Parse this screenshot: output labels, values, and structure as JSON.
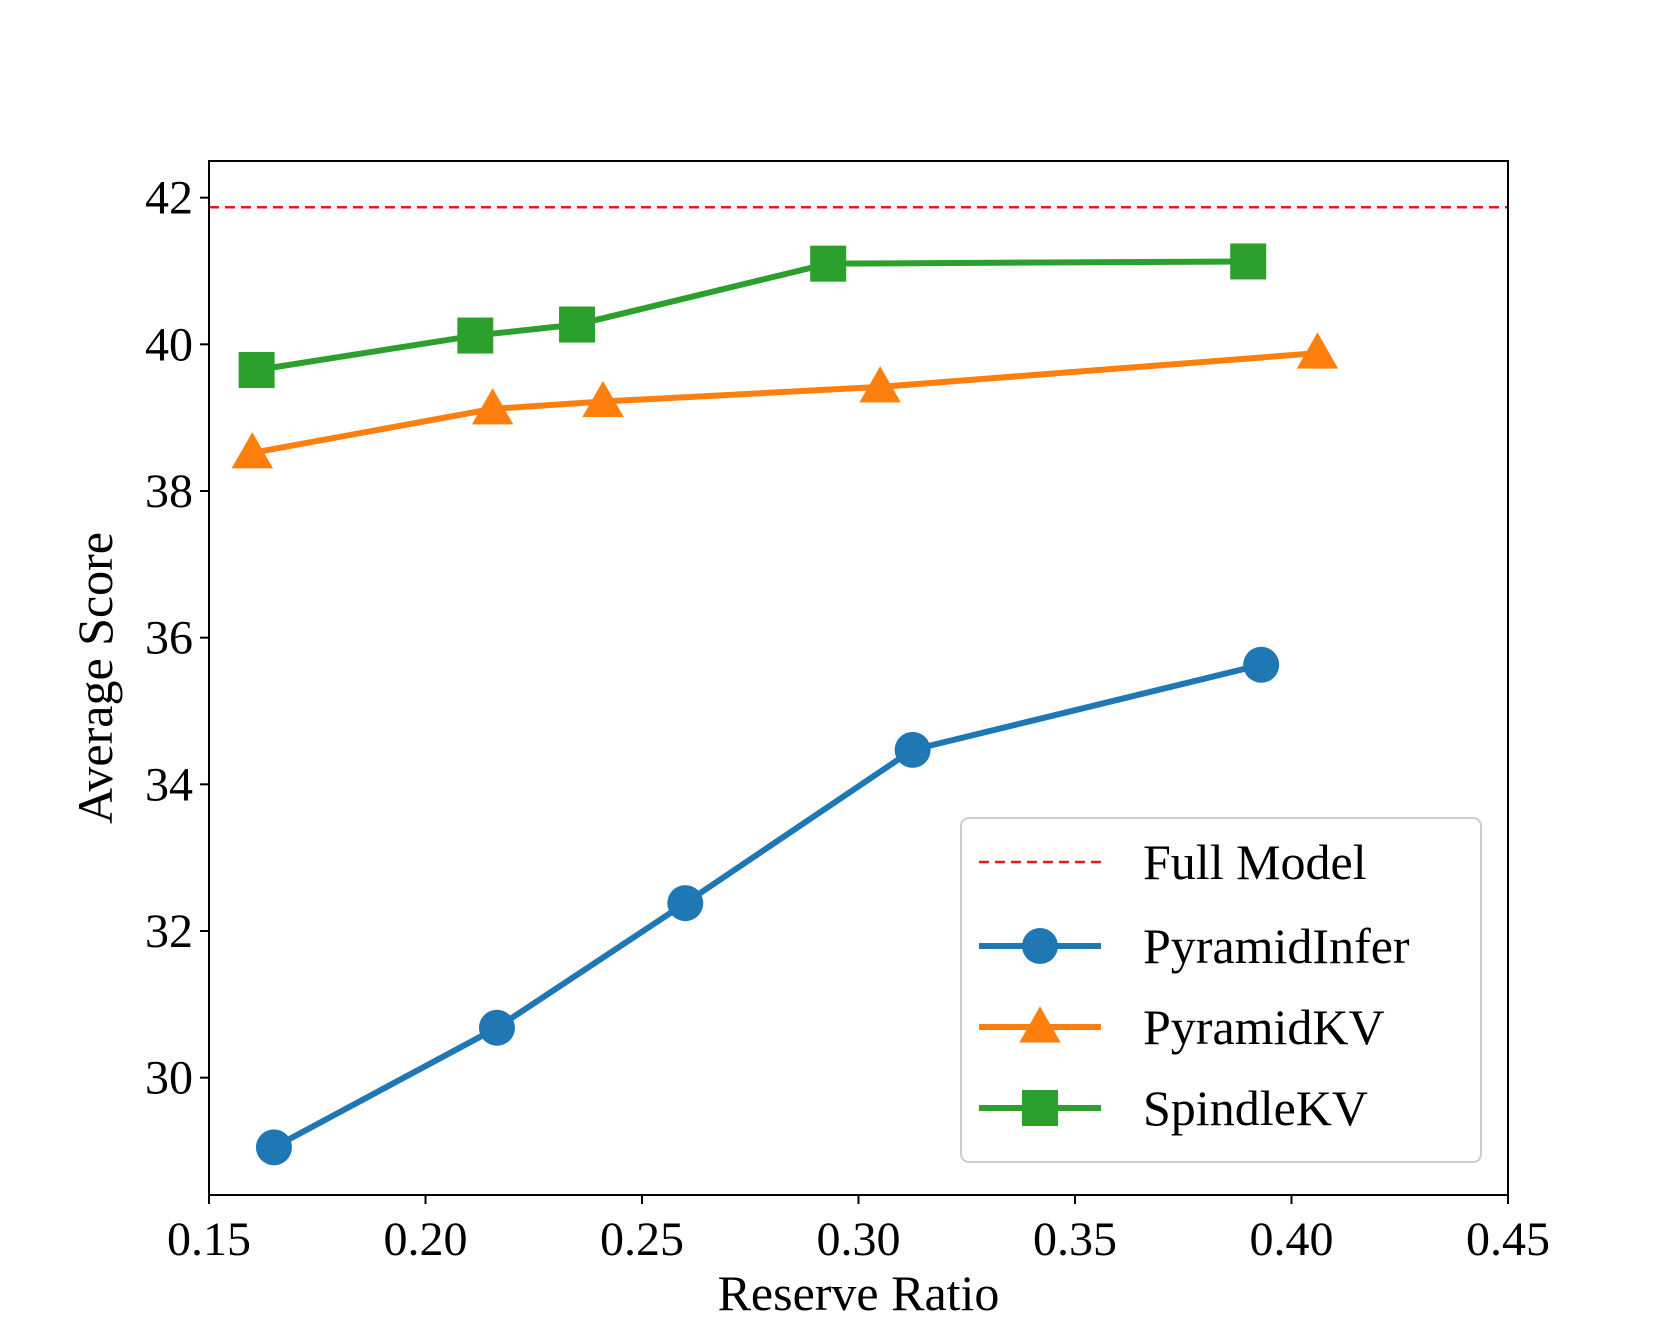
{
  "chart_data": {
    "type": "line",
    "title": "",
    "xlabel": "Reserve Ratio",
    "ylabel": "Average Score",
    "xlim": [
      0.15,
      0.45
    ],
    "ylim": [
      28.4,
      42.5
    ],
    "xticks": [
      "0.15",
      "0.20",
      "0.25",
      "0.30",
      "0.35",
      "0.40",
      "0.45"
    ],
    "yticks": [
      "30",
      "32",
      "34",
      "36",
      "38",
      "40",
      "42"
    ],
    "grid": false,
    "legend_position": "lower right",
    "reference_line": {
      "name": "Full Model",
      "y": 41.87,
      "color": "#e41a1c",
      "style": "dashed"
    },
    "series": [
      {
        "name": "PyramidInfer",
        "color": "#1f77b4",
        "marker": "circle",
        "x": [
          0.165,
          0.2165,
          0.26,
          0.3125,
          0.393
        ],
        "y": [
          29.05,
          30.68,
          32.38,
          34.47,
          35.63
        ]
      },
      {
        "name": "PyramidKV",
        "color": "#ff7f0e",
        "marker": "triangle",
        "x": [
          0.16,
          0.2155,
          0.241,
          0.305,
          0.406
        ],
        "y": [
          38.52,
          39.12,
          39.22,
          39.42,
          39.88
        ]
      },
      {
        "name": "SpindleKV",
        "color": "#2ca02c",
        "marker": "square",
        "x": [
          0.161,
          0.2115,
          0.235,
          0.293,
          0.39
        ],
        "y": [
          39.65,
          40.12,
          40.27,
          41.1,
          41.13
        ]
      }
    ]
  }
}
